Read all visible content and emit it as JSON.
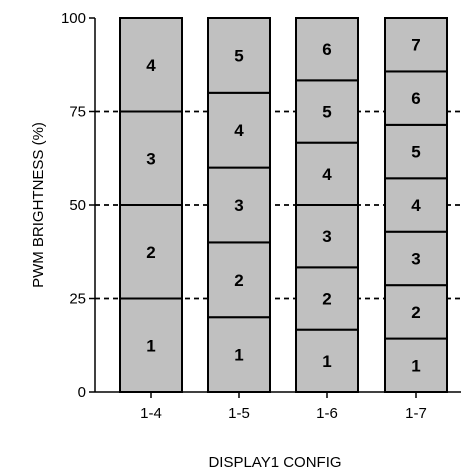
{
  "chart_data": {
    "type": "bar",
    "stacked": true,
    "title": "",
    "xlabel": "DISPLAY1 CONFIG",
    "ylabel": "PWM BRIGHTNESS (%)",
    "ylim": [
      0,
      100
    ],
    "yticks": [
      "0",
      "25",
      "50",
      "75",
      "100"
    ],
    "gridlines_at": [
      25,
      50,
      75
    ],
    "grid_style": "dashed",
    "categories": [
      "1-4",
      "1-5",
      "1-6",
      "1-7"
    ],
    "stacks": [
      {
        "category": "1-4",
        "segment_labels": [
          "1",
          "2",
          "3",
          "4"
        ],
        "segment_size": 25
      },
      {
        "category": "1-5",
        "segment_labels": [
          "1",
          "2",
          "3",
          "4",
          "5"
        ],
        "segment_size": 20
      },
      {
        "category": "1-6",
        "segment_labels": [
          "1",
          "2",
          "3",
          "4",
          "5",
          "6"
        ],
        "segment_size": 16.67
      },
      {
        "category": "1-7",
        "segment_labels": [
          "1",
          "2",
          "3",
          "4",
          "5",
          "6",
          "7"
        ],
        "segment_size": 14.29
      }
    ],
    "colors": {
      "bar_fill": "#c0c0c0",
      "bar_stroke": "#000000",
      "grid": "#000000"
    }
  }
}
